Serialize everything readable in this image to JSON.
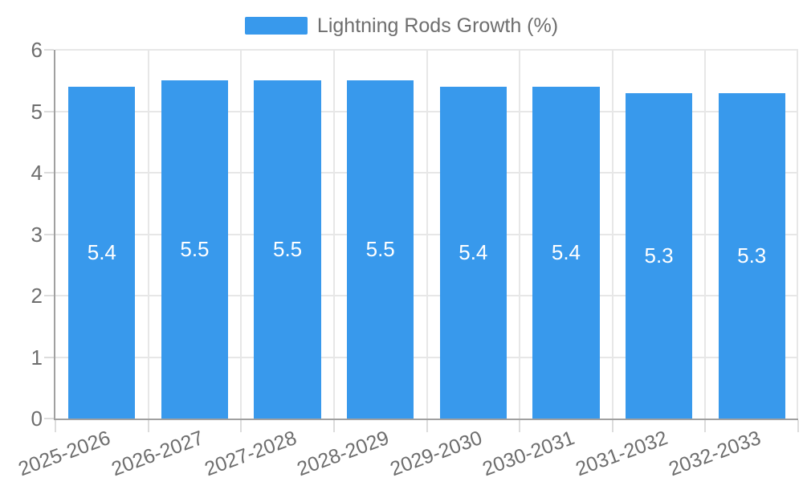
{
  "chart_data": {
    "type": "bar",
    "title": "",
    "legend_label": "Lightning Rods Growth (%)",
    "legend_position": "top",
    "categories": [
      "2025-2026",
      "2026-2027",
      "2027-2028",
      "2028-2029",
      "2029-2030",
      "2030-2031",
      "2031-2032",
      "2032-2033"
    ],
    "series": [
      {
        "name": "Lightning Rods Growth (%)",
        "values": [
          5.4,
          5.5,
          5.5,
          5.5,
          5.4,
          5.4,
          5.3,
          5.3
        ]
      }
    ],
    "value_labels_decimals": 1,
    "xlabel": "",
    "ylabel": "",
    "ylim": [
      0,
      6
    ],
    "ytick_step": 1,
    "yticks": [
      0,
      1,
      2,
      3,
      4,
      5,
      6
    ],
    "grid": true,
    "x_label_rotation_deg": -20,
    "colors": {
      "bar": "#3899ec",
      "value_label": "#ffffff",
      "grid": "#e7e7e7",
      "tick_mark": "#dcdcdc",
      "axis_line": "#a0a0a0",
      "text": "#6e6e6e"
    }
  }
}
